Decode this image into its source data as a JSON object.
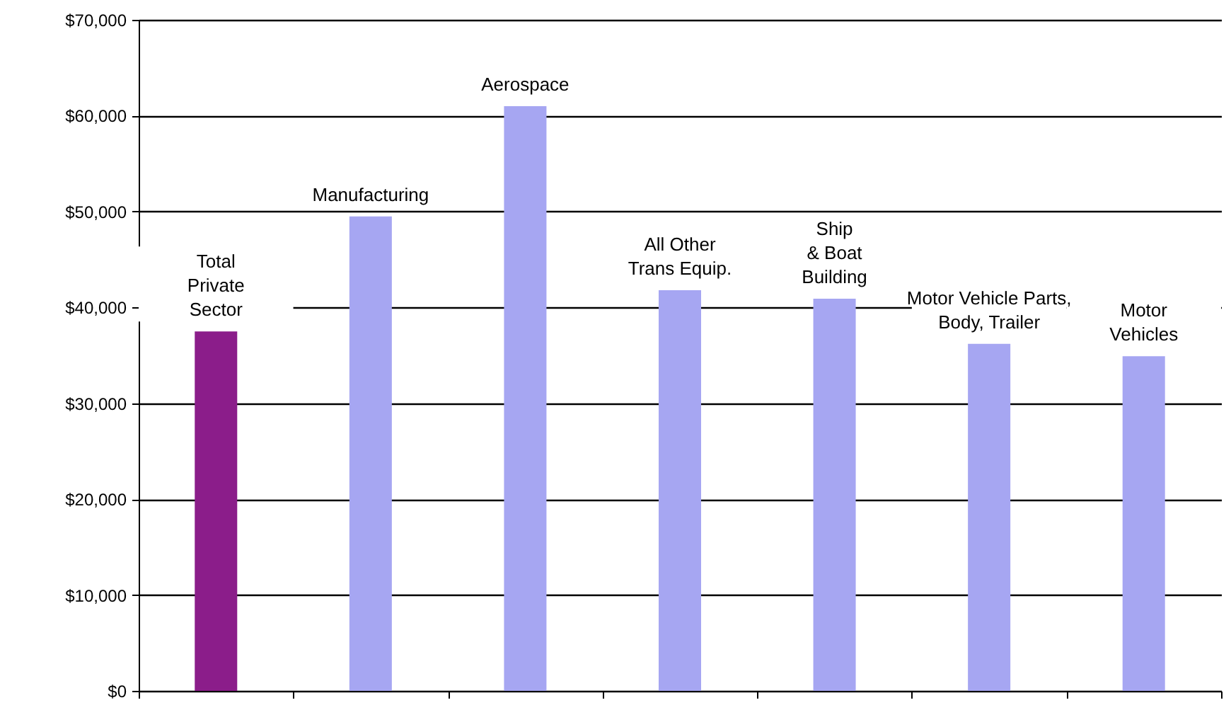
{
  "chart_data": {
    "type": "bar",
    "categories": [
      "Total\nPrivate\nSector",
      "Manufacturing",
      "Aerospace",
      "All Other\nTrans Equip.",
      "Ship\n& Boat\nBuilding",
      "Motor Vehicle Parts,\nBody, Trailer",
      "Motor\nVehicles"
    ],
    "values": [
      37500,
      49500,
      61000,
      41800,
      40900,
      36200,
      34900
    ],
    "colors": [
      "#8b1d8a",
      "#a6a6f2",
      "#a6a6f2",
      "#a6a6f2",
      "#a6a6f2",
      "#a6a6f2",
      "#a6a6f2"
    ],
    "ylim": [
      0,
      70000
    ],
    "yticks": [
      {
        "value": 0,
        "label": "$0"
      },
      {
        "value": 10000,
        "label": "$10,000"
      },
      {
        "value": 20000,
        "label": "$20,000"
      },
      {
        "value": 30000,
        "label": "$30,000"
      },
      {
        "value": 40000,
        "label": "$40,000"
      },
      {
        "value": 50000,
        "label": "$50,000"
      },
      {
        "value": 60000,
        "label": "$60,000"
      },
      {
        "value": 70000,
        "label": "$70,000"
      }
    ],
    "grid": "y",
    "tick_labels": "y"
  }
}
